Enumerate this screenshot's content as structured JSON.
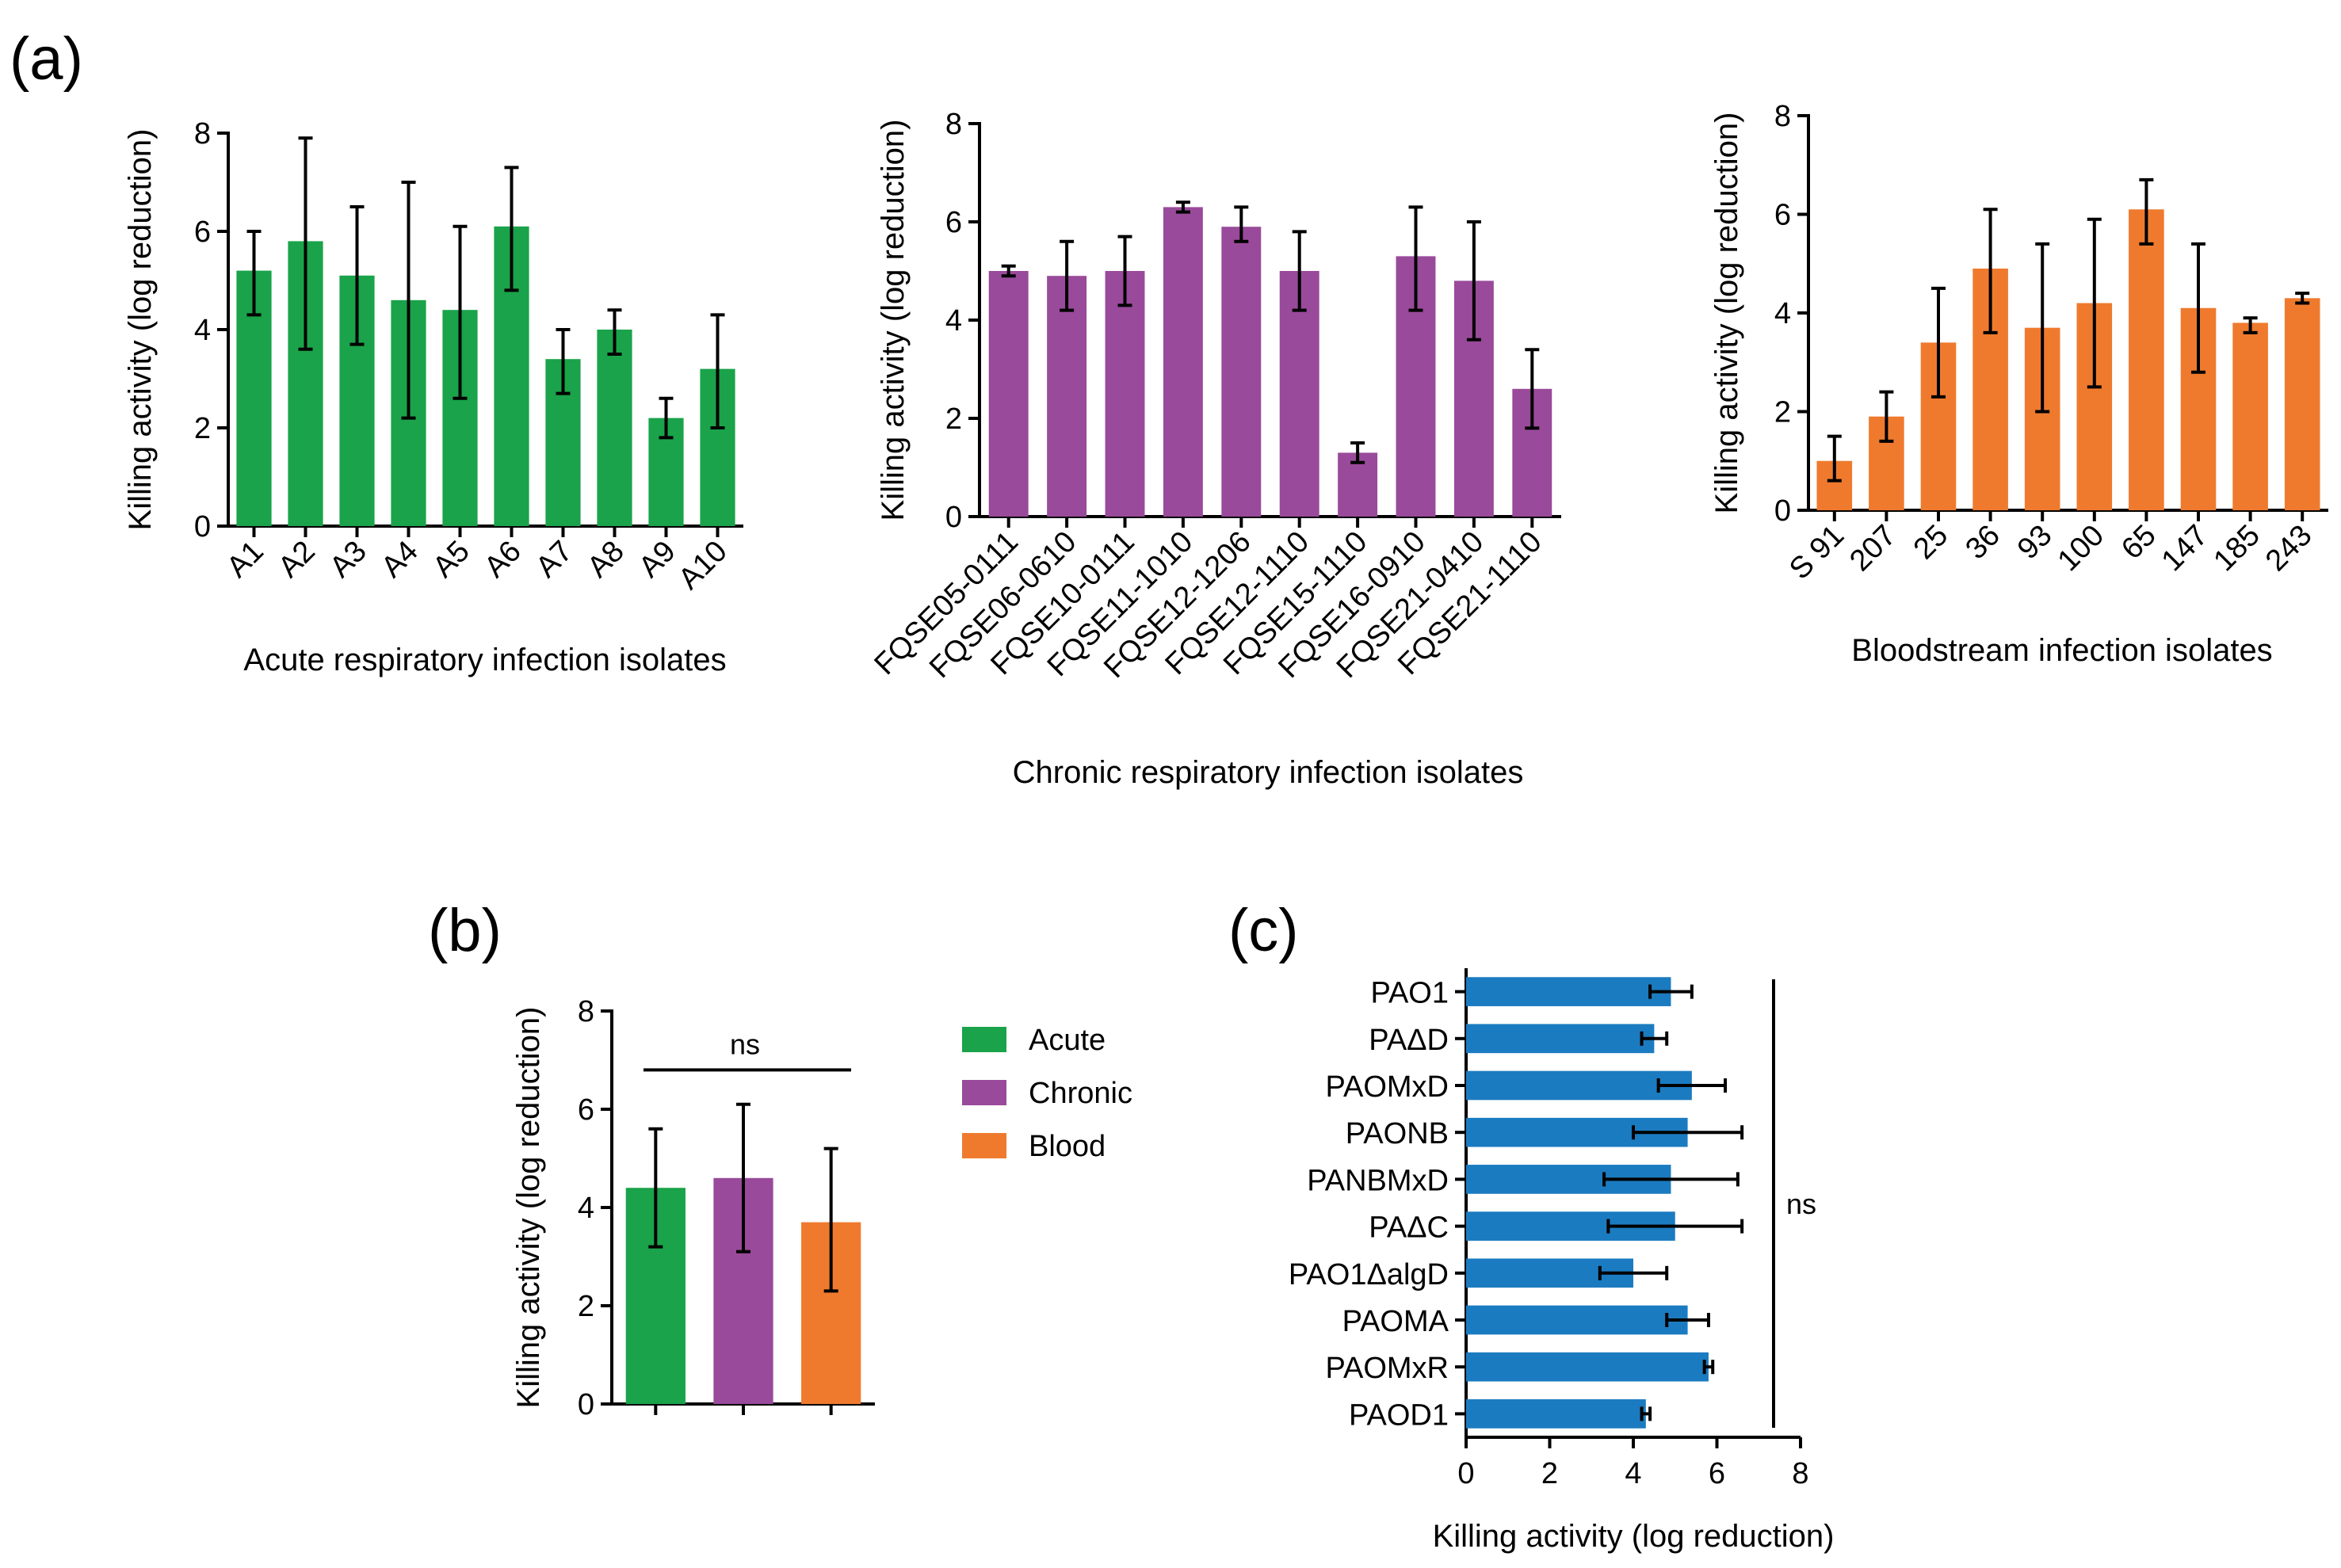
{
  "panel_labels": {
    "a": "(a)",
    "b": "(b)",
    "c": "(c)"
  },
  "colors": {
    "acute": "#1aa34a",
    "chronic": "#994a9a",
    "blood": "#ef7a2e",
    "panel_c": "#1b7bc0"
  },
  "chart_data": [
    {
      "id": "a1",
      "type": "bar",
      "orientation": "vertical",
      "panel": "(a)",
      "color": "#1aa34a",
      "categories": [
        "A1",
        "A2",
        "A3",
        "A4",
        "A5",
        "A6",
        "A7",
        "A8",
        "A9",
        "A10"
      ],
      "values": [
        5.2,
        5.8,
        5.1,
        4.6,
        4.4,
        6.1,
        3.4,
        4.0,
        2.2,
        3.2
      ],
      "err_low": [
        4.3,
        3.6,
        3.7,
        2.2,
        2.6,
        4.8,
        2.7,
        3.5,
        1.8,
        2.0
      ],
      "err_high": [
        6.0,
        7.9,
        6.5,
        7.0,
        6.1,
        7.3,
        4.0,
        4.4,
        2.6,
        4.3
      ],
      "ylabel": "Killing activity (log reduction)",
      "xlabel": "Acute respiratory infection isolates",
      "ylim": [
        0,
        8
      ],
      "yticks": [
        "0",
        "2",
        "4",
        "6",
        "8"
      ]
    },
    {
      "id": "a2",
      "type": "bar",
      "orientation": "vertical",
      "panel": "(a)",
      "color": "#994a9a",
      "categories": [
        "FQSE05-0111",
        "FQSE06-0610",
        "FQSE10-0111",
        "FQSE11-1010",
        "FQSE12-1206",
        "FQSE12-1110",
        "FQSE15-1110",
        "FQSE16-0910",
        "FQSE21-0410",
        "FQSE21-1110"
      ],
      "values": [
        5.0,
        4.9,
        5.0,
        6.3,
        5.9,
        5.0,
        1.3,
        5.3,
        4.8,
        2.6
      ],
      "err_low": [
        4.9,
        4.2,
        4.3,
        6.2,
        5.6,
        4.2,
        1.1,
        4.2,
        3.6,
        1.8
      ],
      "err_high": [
        5.1,
        5.6,
        5.7,
        6.4,
        6.3,
        5.8,
        1.5,
        6.3,
        6.0,
        3.4
      ],
      "ylabel": "Killing activity (log reduction)",
      "xlabel": "Chronic respiratory infection isolates",
      "ylim": [
        0,
        8
      ],
      "yticks": [
        "0",
        "2",
        "4",
        "6",
        "8"
      ]
    },
    {
      "id": "a3",
      "type": "bar",
      "orientation": "vertical",
      "panel": "(a)",
      "color": "#ef7a2e",
      "categories": [
        "S 91",
        "207",
        "25",
        "36",
        "93",
        "100",
        "65",
        "147",
        "185",
        "243"
      ],
      "values": [
        1.0,
        1.9,
        3.4,
        4.9,
        3.7,
        4.2,
        6.1,
        4.1,
        3.8,
        4.3
      ],
      "err_low": [
        0.6,
        1.4,
        2.3,
        3.6,
        2.0,
        2.5,
        5.4,
        2.8,
        3.6,
        4.2
      ],
      "err_high": [
        1.5,
        2.4,
        4.5,
        6.1,
        5.4,
        5.9,
        6.7,
        5.4,
        3.9,
        4.4
      ],
      "ylabel": "Killing activity (log reduction)",
      "xlabel": "Bloodstream infection isolates",
      "ylim": [
        0,
        8
      ],
      "yticks": [
        "0",
        "2",
        "4",
        "6",
        "8"
      ]
    },
    {
      "id": "b",
      "type": "bar",
      "orientation": "vertical",
      "panel": "(b)",
      "categories": [
        "Acute",
        "Chronic",
        "Blood"
      ],
      "colors": [
        "#1aa34a",
        "#994a9a",
        "#ef7a2e"
      ],
      "values": [
        4.4,
        4.6,
        3.7
      ],
      "err_low": [
        3.2,
        3.1,
        2.3
      ],
      "err_high": [
        5.6,
        6.1,
        5.2
      ],
      "ylabel": "Killing activity (log reduction)",
      "ylim": [
        0,
        8
      ],
      "yticks": [
        "0",
        "2",
        "4",
        "6",
        "8"
      ],
      "annotation": "ns",
      "legend": [
        "Acute",
        "Chronic",
        "Blood"
      ]
    },
    {
      "id": "c",
      "type": "bar",
      "orientation": "horizontal",
      "panel": "(c)",
      "color": "#1b7bc0",
      "categories": [
        "PAO1",
        "PAΔD",
        "PAOMxD",
        "PAONB",
        "PANBMxD",
        "PAΔC",
        "PAO1ΔalgD",
        "PAOMA",
        "PAOMxR",
        "PAOD1"
      ],
      "values": [
        4.9,
        4.5,
        5.4,
        5.3,
        4.9,
        5.0,
        4.0,
        5.3,
        5.8,
        4.3
      ],
      "err_low": [
        4.4,
        4.2,
        4.6,
        4.0,
        3.3,
        3.4,
        3.2,
        4.8,
        5.7,
        4.2
      ],
      "err_high": [
        5.4,
        4.8,
        6.2,
        6.6,
        6.5,
        6.6,
        4.8,
        5.8,
        5.9,
        4.4
      ],
      "xlabel": "Killing activity (log reduction)",
      "xlim": [
        0,
        8
      ],
      "xticks": [
        "0",
        "2",
        "4",
        "6",
        "8"
      ],
      "annotation": "ns"
    }
  ]
}
